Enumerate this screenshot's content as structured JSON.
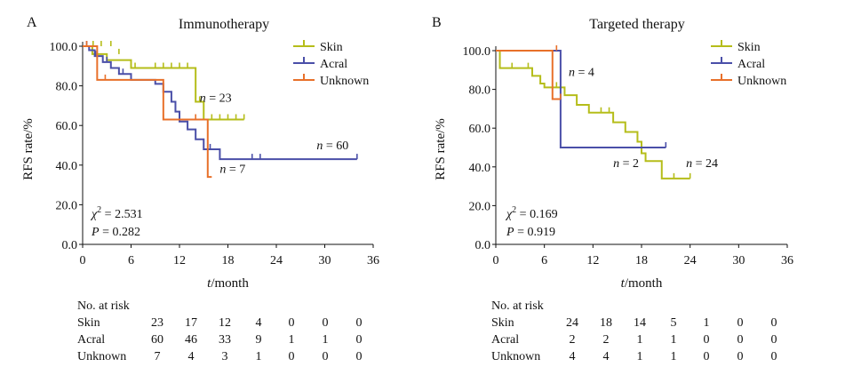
{
  "chart_data": [
    {
      "type": "line",
      "panel_label": "A",
      "title": "Immunotherapy",
      "xlabel": "t/month",
      "ylabel": "RFS rate/%",
      "xlim": [
        0,
        36
      ],
      "ylim": [
        0,
        100
      ],
      "xticks": [
        0,
        6,
        12,
        18,
        24,
        30,
        36
      ],
      "yticks": [
        0.0,
        20.0,
        40.0,
        60.0,
        80.0,
        100.0
      ],
      "ytick_labels": [
        "0.0",
        "20.0",
        "40.0",
        "60.0",
        "80.0",
        "100.0"
      ],
      "legend_position": "top-right",
      "stat_lines": [
        "χ² = 2.531",
        "P = 0.282"
      ],
      "series": [
        {
          "name": "Skin",
          "color": "#b5bd1a",
          "steps": [
            [
              0,
              100
            ],
            [
              1.2,
              96
            ],
            [
              2,
              96
            ],
            [
              3,
              93
            ],
            [
              6,
              89
            ],
            [
              14,
              72
            ],
            [
              15,
              63
            ],
            [
              20,
              63
            ]
          ],
          "censors": [
            [
              1.3,
              100
            ],
            [
              2.3,
              100
            ],
            [
              3.5,
              100
            ],
            [
              4.5,
              96
            ],
            [
              6.5,
              89
            ],
            [
              9,
              89
            ],
            [
              10,
              89
            ],
            [
              11,
              89
            ],
            [
              12,
              89
            ],
            [
              13,
              89
            ],
            [
              14.5,
              72
            ],
            [
              16,
              63
            ],
            [
              17,
              63
            ],
            [
              18,
              63
            ],
            [
              19,
              63
            ],
            [
              20,
              63
            ]
          ],
          "annotation": {
            "text": "n = 23",
            "x": 14.5,
            "y": 72
          }
        },
        {
          "name": "Acral",
          "color": "#4a4fa8",
          "steps": [
            [
              0,
              100
            ],
            [
              0.8,
              98
            ],
            [
              1.5,
              95
            ],
            [
              2.5,
              92
            ],
            [
              3.5,
              89
            ],
            [
              4.5,
              86
            ],
            [
              6,
              83
            ],
            [
              9,
              81
            ],
            [
              10,
              77
            ],
            [
              11,
              72
            ],
            [
              11.5,
              67
            ],
            [
              12,
              62
            ],
            [
              13,
              58
            ],
            [
              14,
              53
            ],
            [
              15,
              48
            ],
            [
              17,
              43
            ],
            [
              34,
              43
            ]
          ],
          "censors": [
            [
              0.5,
              100
            ],
            [
              1.6,
              95
            ],
            [
              3,
              92
            ],
            [
              5,
              86
            ],
            [
              15.8,
              48
            ],
            [
              21,
              43
            ],
            [
              22,
              43
            ],
            [
              34,
              43
            ]
          ],
          "annotation": {
            "text": "n = 60",
            "x": 29,
            "y": 48
          }
        },
        {
          "name": "Unknown",
          "color": "#e8702a",
          "steps": [
            [
              0,
              100
            ],
            [
              1.8,
              83
            ],
            [
              10,
              63
            ],
            [
              15.5,
              34
            ],
            [
              16,
              34
            ]
          ],
          "censors": [
            [
              0.5,
              100
            ],
            [
              2.8,
              83
            ],
            [
              10,
              63
            ],
            [
              14,
              63
            ]
          ],
          "annotation": {
            "text": "n = 7",
            "x": 17,
            "y": 36
          }
        }
      ],
      "risk_table": {
        "heading": "No. at risk",
        "rows": [
          {
            "label": "Skin",
            "values": [
              "23",
              "17",
              "12",
              "4",
              "0",
              "0",
              "0"
            ]
          },
          {
            "label": "Acral",
            "values": [
              "60",
              "46",
              "33",
              "9",
              "1",
              "1",
              "0"
            ]
          },
          {
            "label": "Unknown",
            "values": [
              "7",
              "4",
              "3",
              "1",
              "0",
              "0",
              "0"
            ]
          }
        ]
      }
    },
    {
      "type": "line",
      "panel_label": "B",
      "title": "Targeted therapy",
      "xlabel": "t/month",
      "ylabel": "RFS rate/%",
      "xlim": [
        0,
        36
      ],
      "ylim": [
        0,
        100
      ],
      "xticks": [
        0,
        6,
        12,
        18,
        24,
        30,
        36
      ],
      "yticks": [
        0.0,
        20.0,
        40.0,
        60.0,
        80.0,
        100.0
      ],
      "ytick_labels": [
        "0.0",
        "20.0",
        "40.0",
        "60.0",
        "80.0",
        "100.0"
      ],
      "legend_position": "top-right",
      "stat_lines": [
        "χ² = 0.169",
        "P = 0.919"
      ],
      "series": [
        {
          "name": "Skin",
          "color": "#b5bd1a",
          "steps": [
            [
              0,
              100
            ],
            [
              0.5,
              91
            ],
            [
              4.5,
              87
            ],
            [
              5.5,
              83
            ],
            [
              6,
              81
            ],
            [
              8.5,
              77
            ],
            [
              10,
              72
            ],
            [
              11.5,
              68
            ],
            [
              14.5,
              63
            ],
            [
              16,
              58
            ],
            [
              17.5,
              53
            ],
            [
              18,
              47
            ],
            [
              18.5,
              43
            ],
            [
              20.5,
              34
            ],
            [
              24,
              34
            ]
          ],
          "censors": [
            [
              2,
              91
            ],
            [
              4,
              91
            ],
            [
              7.5,
              81
            ],
            [
              13,
              68
            ],
            [
              14,
              68
            ],
            [
              22,
              34
            ],
            [
              24,
              34
            ]
          ],
          "annotation": {
            "text": "n = 24",
            "x": 23.5,
            "y": 40
          }
        },
        {
          "name": "Acral",
          "color": "#4a4fa8",
          "steps": [
            [
              0,
              100
            ],
            [
              8,
              100
            ],
            [
              8,
              50
            ],
            [
              21,
              50
            ]
          ],
          "censors": [
            [
              21,
              50
            ]
          ],
          "annotation": {
            "text": "n = 2",
            "x": 14.5,
            "y": 40
          }
        },
        {
          "name": "Unknown",
          "color": "#e8702a",
          "steps": [
            [
              0,
              100
            ],
            [
              7,
              100
            ],
            [
              7,
              75
            ],
            [
              8,
              75
            ]
          ],
          "censors": [
            [
              7.5,
              100
            ],
            [
              8,
              75
            ]
          ],
          "annotation": {
            "text": "n = 4",
            "x": 9,
            "y": 87
          }
        }
      ],
      "risk_table": {
        "heading": "No. at risk",
        "rows": [
          {
            "label": "Skin",
            "values": [
              "24",
              "18",
              "14",
              "5",
              "1",
              "0",
              "0"
            ]
          },
          {
            "label": "Acral",
            "values": [
              "2",
              "2",
              "1",
              "1",
              "0",
              "0",
              "0"
            ]
          },
          {
            "label": "Unknown",
            "values": [
              "4",
              "4",
              "1",
              "1",
              "0",
              "0",
              "0"
            ]
          }
        ]
      }
    }
  ]
}
